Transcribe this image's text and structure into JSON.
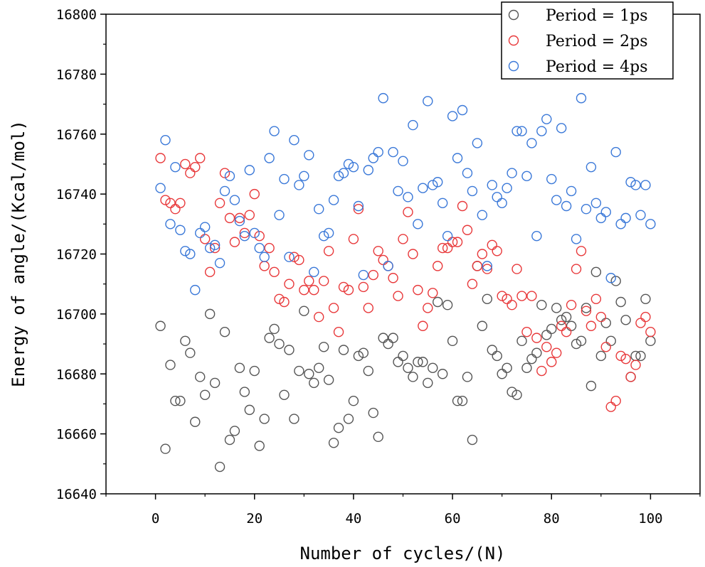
{
  "chart_data": {
    "type": "scatter",
    "xlabel": "Number of cycles/(N)",
    "ylabel": "Energy of angle/(Kcal/mol)",
    "xlim": [
      -10,
      110
    ],
    "ylim": [
      16640,
      16800
    ],
    "xticks": [
      0,
      20,
      40,
      60,
      80,
      100
    ],
    "yticks": [
      16640,
      16660,
      16680,
      16700,
      16720,
      16740,
      16760,
      16780,
      16800
    ],
    "legend_position": "top-right",
    "series": [
      {
        "name": "Period = 1ps",
        "color": "#555555",
        "x": [
          1,
          2,
          3,
          4,
          5,
          6,
          7,
          8,
          9,
          10,
          11,
          12,
          13,
          14,
          15,
          16,
          17,
          18,
          19,
          20,
          21,
          22,
          23,
          24,
          25,
          26,
          27,
          28,
          29,
          30,
          31,
          32,
          33,
          34,
          35,
          36,
          37,
          38,
          39,
          40,
          41,
          42,
          43,
          44,
          45,
          46,
          47,
          48,
          49,
          50,
          51,
          52,
          53,
          54,
          55,
          56,
          57,
          58,
          59,
          60,
          61,
          62,
          63,
          64,
          65,
          66,
          67,
          68,
          69,
          70,
          71,
          72,
          73,
          74,
          75,
          76,
          77,
          78,
          79,
          80,
          81,
          82,
          83,
          84,
          85,
          86,
          87,
          88,
          89,
          90,
          91,
          92,
          93,
          94,
          95,
          96,
          97,
          98,
          99,
          100
        ],
        "values": [
          16696,
          16655,
          16683,
          16671,
          16671,
          16691,
          16687,
          16664,
          16679,
          16673,
          16700,
          16677,
          16649,
          16694,
          16658,
          16661,
          16682,
          16674,
          16668,
          16681,
          16656,
          16665,
          16692,
          16695,
          16690,
          16673,
          16688,
          16665,
          16681,
          16701,
          16680,
          16677,
          16682,
          16689,
          16678,
          16657,
          16662,
          16688,
          16665,
          16671,
          16686,
          16687,
          16681,
          16667,
          16659,
          16692,
          16690,
          16692,
          16684,
          16686,
          16682,
          16679,
          16684,
          16684,
          16677,
          16682,
          16704,
          16680,
          16703,
          16691,
          16671,
          16671,
          16679,
          16658,
          16716,
          16696,
          16705,
          16688,
          16686,
          16680,
          16682,
          16674,
          16673,
          16691,
          16682,
          16685,
          16687,
          16703,
          16693,
          16695,
          16702,
          16698,
          16699,
          16696,
          16690,
          16691,
          16702,
          16676,
          16714,
          16686,
          16697,
          16691,
          16711,
          16704,
          16698,
          16679,
          16686,
          16686,
          16705,
          16691
        ]
      },
      {
        "name": "Period = 2ps",
        "color": "#e8383a",
        "x": [
          1,
          2,
          3,
          4,
          5,
          6,
          7,
          8,
          9,
          10,
          11,
          12,
          13,
          14,
          15,
          16,
          17,
          18,
          19,
          20,
          21,
          22,
          23,
          24,
          25,
          26,
          27,
          28,
          29,
          30,
          31,
          32,
          33,
          34,
          35,
          36,
          37,
          38,
          39,
          40,
          41,
          42,
          43,
          44,
          45,
          46,
          47,
          48,
          49,
          50,
          51,
          52,
          53,
          54,
          55,
          56,
          57,
          58,
          59,
          60,
          61,
          62,
          63,
          64,
          65,
          66,
          67,
          68,
          69,
          70,
          71,
          72,
          73,
          74,
          75,
          76,
          77,
          78,
          79,
          80,
          81,
          82,
          83,
          84,
          85,
          86,
          87,
          88,
          89,
          90,
          91,
          92,
          93,
          94,
          95,
          96,
          97,
          98,
          99,
          100
        ],
        "values": [
          16752,
          16738,
          16737,
          16735,
          16737,
          16750,
          16747,
          16749,
          16752,
          16725,
          16714,
          16722,
          16737,
          16747,
          16732,
          16724,
          16732,
          16727,
          16733,
          16740,
          16726,
          16716,
          16722,
          16714,
          16705,
          16704,
          16710,
          16719,
          16718,
          16708,
          16711,
          16708,
          16699,
          16711,
          16721,
          16702,
          16694,
          16709,
          16708,
          16725,
          16735,
          16709,
          16702,
          16713,
          16721,
          16718,
          16716,
          16712,
          16706,
          16725,
          16734,
          16720,
          16708,
          16696,
          16702,
          16707,
          16716,
          16722,
          16722,
          16724,
          16724,
          16736,
          16728,
          16710,
          16716,
          16720,
          16715,
          16723,
          16721,
          16706,
          16705,
          16703,
          16715,
          16706,
          16694,
          16706,
          16692,
          16681,
          16689,
          16684,
          16687,
          16696,
          16694,
          16703,
          16715,
          16721,
          16701,
          16696,
          16705,
          16699,
          16689,
          16669,
          16671,
          16686,
          16685,
          16679,
          16683,
          16697,
          16699,
          16694
        ]
      },
      {
        "name": "Period = 4ps",
        "color": "#3a78d8",
        "x": [
          1,
          2,
          3,
          4,
          5,
          6,
          7,
          8,
          9,
          10,
          11,
          12,
          13,
          14,
          15,
          16,
          17,
          18,
          19,
          20,
          21,
          22,
          23,
          24,
          25,
          26,
          27,
          28,
          29,
          30,
          31,
          32,
          33,
          34,
          35,
          36,
          37,
          38,
          39,
          40,
          41,
          42,
          43,
          44,
          45,
          46,
          47,
          48,
          49,
          50,
          51,
          52,
          53,
          54,
          55,
          56,
          57,
          58,
          59,
          60,
          61,
          62,
          63,
          64,
          65,
          66,
          67,
          68,
          69,
          70,
          71,
          72,
          73,
          74,
          75,
          76,
          77,
          78,
          79,
          80,
          81,
          82,
          83,
          84,
          85,
          86,
          87,
          88,
          89,
          90,
          91,
          92,
          93,
          94,
          95,
          96,
          97,
          98,
          99,
          100
        ],
        "values": [
          16742,
          16758,
          16730,
          16749,
          16728,
          16721,
          16720,
          16708,
          16727,
          16729,
          16722,
          16723,
          16717,
          16741,
          16746,
          16738,
          16731,
          16726,
          16748,
          16727,
          16722,
          16719,
          16752,
          16761,
          16733,
          16745,
          16719,
          16758,
          16743,
          16746,
          16753,
          16714,
          16735,
          16726,
          16727,
          16738,
          16746,
          16747,
          16750,
          16749,
          16736,
          16713,
          16748,
          16752,
          16754,
          16772,
          16716,
          16754,
          16741,
          16751,
          16739,
          16763,
          16730,
          16742,
          16771,
          16743,
          16744,
          16737,
          16726,
          16766,
          16752,
          16768,
          16747,
          16741,
          16757,
          16733,
          16716,
          16743,
          16739,
          16737,
          16742,
          16747,
          16761,
          16761,
          16746,
          16757,
          16726,
          16761,
          16765,
          16745,
          16738,
          16762,
          16736,
          16741,
          16725,
          16772,
          16735,
          16749,
          16737,
          16732,
          16734,
          16712,
          16754,
          16730,
          16732,
          16744,
          16743,
          16733,
          16743,
          16730
        ]
      }
    ]
  }
}
